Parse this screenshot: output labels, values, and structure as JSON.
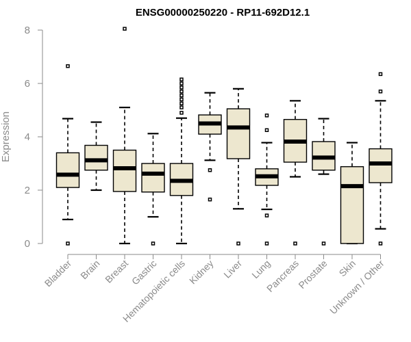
{
  "chart_data": {
    "type": "boxplot",
    "title": "ENSG00000250220 - RP11-692D12.1",
    "ylabel": "Expression",
    "xlabel": "",
    "ylim": [
      0,
      8
    ],
    "yticks": [
      0,
      2,
      4,
      6,
      8
    ],
    "box_color": "#ede7cf",
    "grid": false,
    "categories": [
      "Bladder",
      "Brain",
      "Breast",
      "Gastric",
      "Hematopoietic cells",
      "Kidney",
      "Liver",
      "Lung",
      "Pancreas",
      "Prostate",
      "Skin",
      "Unknown / Other"
    ],
    "boxes": [
      {
        "whislo": 0.9,
        "q1": 2.1,
        "med": 2.58,
        "q3": 3.4,
        "whishi": 4.68,
        "outliers": [
          0.0,
          6.65
        ]
      },
      {
        "whislo": 2.0,
        "q1": 2.75,
        "med": 3.12,
        "q3": 3.68,
        "whishi": 4.55,
        "outliers": []
      },
      {
        "whislo": 0.0,
        "q1": 1.95,
        "med": 2.82,
        "q3": 3.5,
        "whishi": 5.1,
        "outliers": [
          8.05
        ]
      },
      {
        "whislo": 1.0,
        "q1": 1.93,
        "med": 2.62,
        "q3": 3.0,
        "whishi": 4.12,
        "outliers": [
          0.0
        ]
      },
      {
        "whislo": 0.0,
        "q1": 1.8,
        "med": 2.35,
        "q3": 3.0,
        "whishi": 4.7,
        "outliers": [
          4.9,
          5.1,
          5.25,
          5.4,
          5.55,
          5.7,
          5.85,
          6.0,
          6.15
        ]
      },
      {
        "whislo": 3.12,
        "q1": 4.1,
        "med": 4.5,
        "q3": 4.82,
        "whishi": 5.65,
        "outliers": [
          2.75,
          1.65
        ]
      },
      {
        "whislo": 1.3,
        "q1": 3.18,
        "med": 4.35,
        "q3": 5.05,
        "whishi": 5.8,
        "outliers": [
          0.0
        ]
      },
      {
        "whislo": 1.28,
        "q1": 2.18,
        "med": 2.52,
        "q3": 2.8,
        "whishi": 3.78,
        "outliers": [
          4.25,
          4.8,
          1.05,
          0.0
        ]
      },
      {
        "whislo": 2.5,
        "q1": 3.05,
        "med": 3.82,
        "q3": 4.65,
        "whishi": 5.35,
        "outliers": [
          0.0
        ]
      },
      {
        "whislo": 2.6,
        "q1": 2.75,
        "med": 3.22,
        "q3": 3.82,
        "whishi": 4.68,
        "outliers": [
          0.0
        ]
      },
      {
        "whislo": 0.0,
        "q1": 0.0,
        "med": 2.15,
        "q3": 2.88,
        "whishi": 3.78,
        "outliers": []
      },
      {
        "whislo": 0.55,
        "q1": 2.28,
        "med": 3.0,
        "q3": 3.55,
        "whishi": 5.35,
        "outliers": [
          5.7,
          6.35,
          0.0
        ]
      }
    ]
  }
}
